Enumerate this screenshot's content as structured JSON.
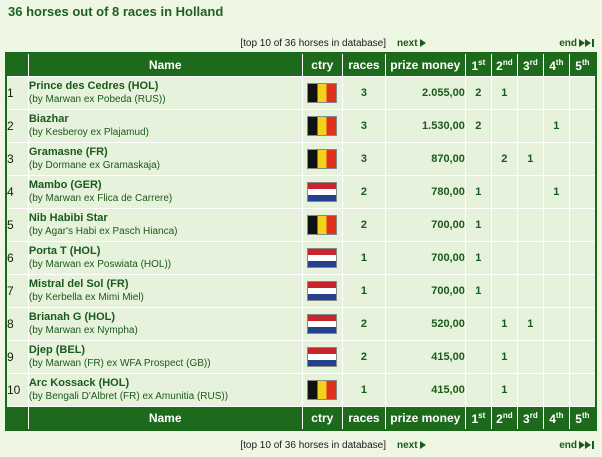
{
  "page_title": "36 horses out of 8 races in Holland",
  "nav": {
    "info": "[top 10 of 36 horses in database]",
    "next": "next",
    "end": "end"
  },
  "headers": {
    "name": "Name",
    "ctry": "ctry",
    "races": "races",
    "prize": "prize money",
    "p1": "1",
    "p1s": "st",
    "p2": "2",
    "p2s": "nd",
    "p3": "3",
    "p3s": "rd",
    "p4": "4",
    "p4s": "th",
    "p5": "5",
    "p5s": "th"
  },
  "colors": {
    "header_bg": "#1d6a1d",
    "row_bg": "#e6f2dc",
    "page_bg": "#eef6e4"
  },
  "horses": [
    {
      "n": "1",
      "name": "Prince des Cedres (HOL)",
      "ped": "(by Marwan ex Pobeda (RUS))",
      "flag": "be",
      "races": "3",
      "prize": "2.055,00",
      "p1": "2",
      "p2": "1",
      "p3": "",
      "p4": "",
      "p5": ""
    },
    {
      "n": "2",
      "name": "Biazhar",
      "ped": "(by Kesberoy ex Plajamud)",
      "flag": "be",
      "races": "3",
      "prize": "1.530,00",
      "p1": "2",
      "p2": "",
      "p3": "",
      "p4": "1",
      "p5": ""
    },
    {
      "n": "3",
      "name": "Gramasne (FR)",
      "ped": "(by Dormane ex Gramaskaja)",
      "flag": "be",
      "races": "3",
      "prize": "870,00",
      "p1": "",
      "p2": "2",
      "p3": "1",
      "p4": "",
      "p5": ""
    },
    {
      "n": "4",
      "name": "Mambo (GER)",
      "ped": "(by Marwan ex Flica de Carrere)",
      "flag": "nl",
      "races": "2",
      "prize": "780,00",
      "p1": "1",
      "p2": "",
      "p3": "",
      "p4": "1",
      "p5": ""
    },
    {
      "n": "5",
      "name": "Nib Habibi Star",
      "ped": "(by Agar's Habi ex Pasch Hianca)",
      "flag": "be",
      "races": "2",
      "prize": "700,00",
      "p1": "1",
      "p2": "",
      "p3": "",
      "p4": "",
      "p5": ""
    },
    {
      "n": "6",
      "name": "Porta T (HOL)",
      "ped": "(by Marwan ex Poswiata (HOL))",
      "flag": "nl",
      "races": "1",
      "prize": "700,00",
      "p1": "1",
      "p2": "",
      "p3": "",
      "p4": "",
      "p5": ""
    },
    {
      "n": "7",
      "name": "Mistral del Sol (FR)",
      "ped": "(by Kerbella ex Mimi Miel)",
      "flag": "nl",
      "races": "1",
      "prize": "700,00",
      "p1": "1",
      "p2": "",
      "p3": "",
      "p4": "",
      "p5": ""
    },
    {
      "n": "8",
      "name": "Brianah G (HOL)",
      "ped": "(by Marwan ex Nympha)",
      "flag": "nl",
      "races": "2",
      "prize": "520,00",
      "p1": "",
      "p2": "1",
      "p3": "1",
      "p4": "",
      "p5": ""
    },
    {
      "n": "9",
      "name": "Djep (BEL)",
      "ped": "(by Marwan (FR) ex WFA Prospect (GB))",
      "flag": "nl",
      "races": "2",
      "prize": "415,00",
      "p1": "",
      "p2": "1",
      "p3": "",
      "p4": "",
      "p5": ""
    },
    {
      "n": "10",
      "name": "Arc Kossack (HOL)",
      "ped": "(by Bengali D'Albret (FR) ex Amunitia (RUS))",
      "flag": "be",
      "races": "1",
      "prize": "415,00",
      "p1": "",
      "p2": "1",
      "p3": "",
      "p4": "",
      "p5": ""
    }
  ]
}
